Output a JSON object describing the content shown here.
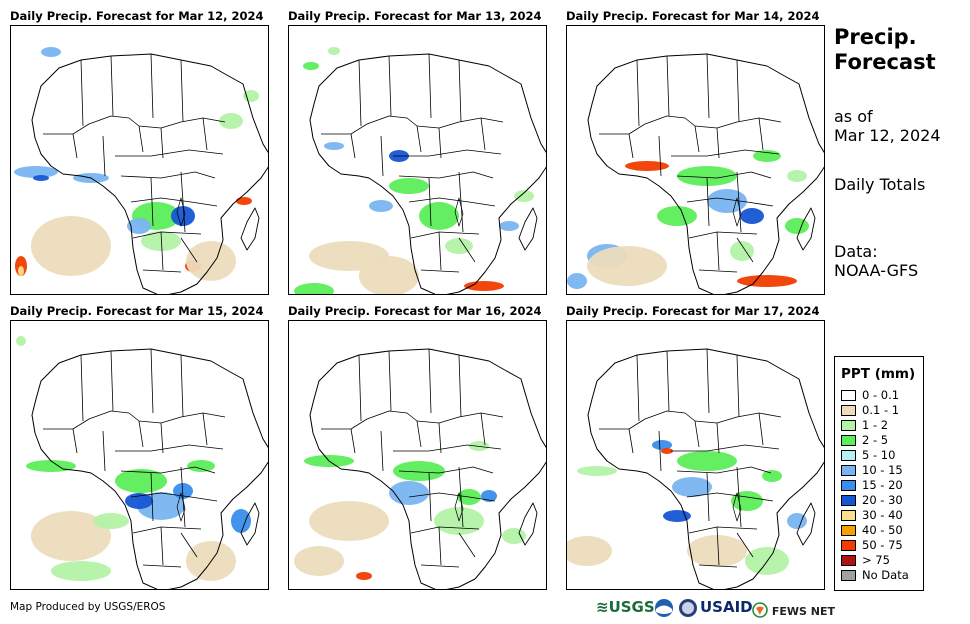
{
  "panels": [
    {
      "title": "Daily Precip. Forecast for Mar 12, 2024"
    },
    {
      "title": "Daily Precip. Forecast for Mar 13, 2024"
    },
    {
      "title": "Daily Precip. Forecast for Mar 14, 2024"
    },
    {
      "title": "Daily Precip. Forecast for Mar 15, 2024"
    },
    {
      "title": "Daily Precip. Forecast for Mar 16, 2024"
    },
    {
      "title": "Daily Precip. Forecast for Mar 17, 2024"
    }
  ],
  "side": {
    "title_line1": "Precip.",
    "title_line2": "Forecast",
    "asof_line1": "as of",
    "asof_line2": "Mar 12, 2024",
    "totals": "Daily Totals",
    "data_line1": "Data:",
    "data_line2": "NOAA-GFS"
  },
  "legend": {
    "title": "PPT (mm)",
    "items": [
      {
        "label": "0 - 0.1",
        "color": "#ffffff"
      },
      {
        "label": "0.1 - 1",
        "color": "#ecdcbc"
      },
      {
        "label": "1 - 2",
        "color": "#b4f2a6"
      },
      {
        "label": "2 - 5",
        "color": "#5ced5a"
      },
      {
        "label": "5 - 10",
        "color": "#b6f1f2"
      },
      {
        "label": "10 - 15",
        "color": "#79b5f0"
      },
      {
        "label": "15 - 20",
        "color": "#3a8eec"
      },
      {
        "label": "20 - 30",
        "color": "#1656d5"
      },
      {
        "label": "30 - 40",
        "color": "#f8e08a"
      },
      {
        "label": "40 - 50",
        "color": "#f5a000"
      },
      {
        "label": "50 - 75",
        "color": "#f23c00"
      },
      {
        "label": "> 75",
        "color": "#b01212"
      },
      {
        "label": "No Data",
        "color": "#a0a0a0"
      }
    ]
  },
  "footer": {
    "credit": "Map Produced by USGS/EROS",
    "logos": {
      "usgs": "USGS",
      "usaid": "USAID",
      "fewsnet": "FEWS NET"
    }
  }
}
